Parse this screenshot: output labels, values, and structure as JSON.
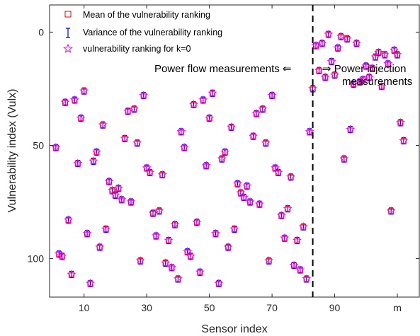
{
  "chart_data": {
    "type": "scatter",
    "xlabel": "Sensor index",
    "ylabel": "Vulnerability index (Vulx)",
    "xlim": [
      -1,
      117
    ],
    "ylim": [
      -12,
      117
    ],
    "y_reversed": true,
    "grid": false,
    "legend_position": "top-left",
    "x_ticks": [
      {
        "value": 10,
        "label": "10"
      },
      {
        "value": 30,
        "label": "30"
      },
      {
        "value": 50,
        "label": "50"
      },
      {
        "value": 70,
        "label": "70"
      },
      {
        "value": 90,
        "label": "90"
      },
      {
        "value": 110,
        "label": "m"
      }
    ],
    "y_ticks": [
      {
        "value": 0,
        "label": "0"
      },
      {
        "value": 50,
        "label": "50"
      },
      {
        "value": 100,
        "label": "100"
      }
    ],
    "divider_x": 83,
    "annotations": {
      "left": "Power flow measurements ⇐",
      "right_line1": "⇒ Power injection",
      "right_line2": "measurements"
    },
    "legend": [
      {
        "label": "Mean of the vulnerability ranking",
        "marker": "square",
        "color": "#e8000b"
      },
      {
        "label": "Variance of the vulnerability ranking",
        "marker": "errorbar",
        "color": "#0000ee"
      },
      {
        "label": "vulnerability ranking for k=0",
        "marker": "star",
        "color": "#ff00ff"
      }
    ],
    "colors": {
      "mean": "#e8000b",
      "variance": "#0000ee",
      "k0": "#ff00ff"
    },
    "points": [
      [
        1,
        51
      ],
      [
        2,
        98
      ],
      [
        3,
        99
      ],
      [
        4,
        31
      ],
      [
        5,
        83
      ],
      [
        6,
        107
      ],
      [
        7,
        30
      ],
      [
        8,
        58
      ],
      [
        9,
        38
      ],
      [
        10,
        26
      ],
      [
        11,
        89
      ],
      [
        12,
        111
      ],
      [
        13,
        57
      ],
      [
        14,
        53
      ],
      [
        15,
        95
      ],
      [
        16,
        41
      ],
      [
        17,
        87
      ],
      [
        18,
        66
      ],
      [
        19,
        70
      ],
      [
        20,
        72
      ],
      [
        21,
        69
      ],
      [
        22,
        74
      ],
      [
        23,
        47
      ],
      [
        24,
        35
      ],
      [
        25,
        75
      ],
      [
        26,
        34
      ],
      [
        27,
        49
      ],
      [
        28,
        101
      ],
      [
        29,
        28
      ],
      [
        30,
        60
      ],
      [
        31,
        62
      ],
      [
        32,
        80
      ],
      [
        33,
        90
      ],
      [
        34,
        79
      ],
      [
        35,
        63
      ],
      [
        36,
        102
      ],
      [
        37,
        92
      ],
      [
        38,
        104
      ],
      [
        39,
        85
      ],
      [
        40,
        109
      ],
      [
        41,
        44
      ],
      [
        42,
        51
      ],
      [
        43,
        97
      ],
      [
        44,
        99
      ],
      [
        45,
        32
      ],
      [
        46,
        84
      ],
      [
        47,
        106
      ],
      [
        48,
        30
      ],
      [
        49,
        59
      ],
      [
        50,
        38
      ],
      [
        51,
        27
      ],
      [
        52,
        89
      ],
      [
        53,
        111
      ],
      [
        54,
        56
      ],
      [
        55,
        53
      ],
      [
        56,
        95
      ],
      [
        57,
        42
      ],
      [
        58,
        87
      ],
      [
        59,
        67
      ],
      [
        60,
        71
      ],
      [
        61,
        73
      ],
      [
        62,
        68
      ],
      [
        63,
        75
      ],
      [
        64,
        46
      ],
      [
        65,
        36
      ],
      [
        66,
        76
      ],
      [
        67,
        34
      ],
      [
        68,
        49
      ],
      [
        69,
        101
      ],
      [
        70,
        28
      ],
      [
        71,
        60
      ],
      [
        72,
        62
      ],
      [
        73,
        81
      ],
      [
        74,
        91
      ],
      [
        75,
        78
      ],
      [
        76,
        64
      ],
      [
        77,
        103
      ],
      [
        78,
        92
      ],
      [
        79,
        105
      ],
      [
        80,
        86
      ],
      [
        81,
        109
      ],
      [
        82,
        44
      ],
      [
        83,
        25
      ],
      [
        84,
        6
      ],
      [
        85,
        17
      ],
      [
        86,
        5
      ],
      [
        87,
        20
      ],
      [
        88,
        1
      ],
      [
        89,
        13
      ],
      [
        90,
        19
      ],
      [
        91,
        7
      ],
      [
        92,
        2
      ],
      [
        93,
        56
      ],
      [
        94,
        3
      ],
      [
        95,
        43
      ],
      [
        96,
        23
      ],
      [
        97,
        5
      ],
      [
        98,
        22
      ],
      [
        99,
        21
      ],
      [
        100,
        15
      ],
      [
        101,
        20
      ],
      [
        102,
        16
      ],
      [
        103,
        11
      ],
      [
        104,
        9
      ],
      [
        105,
        24
      ],
      [
        106,
        10
      ],
      [
        107,
        14
      ],
      [
        108,
        79
      ],
      [
        109,
        8
      ],
      [
        110,
        10
      ],
      [
        111,
        40
      ],
      [
        112,
        48
      ]
    ]
  }
}
